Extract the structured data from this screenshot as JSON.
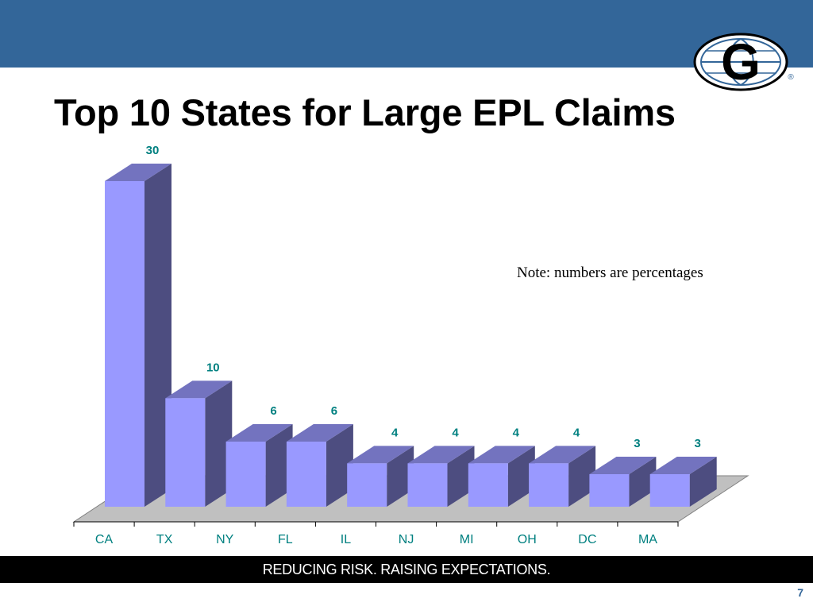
{
  "slide": {
    "title": "Top 10 States for Large EPL Claims",
    "note": "Note: numbers are percentages",
    "footer": "REDUCING RISK.  RAISING EXPECTATIONS.",
    "page_number": "7",
    "logo_letter": "G",
    "logo_mark": "®"
  },
  "colors": {
    "band": "#336699",
    "bar_front": "#9999FF",
    "bar_side": "#4D4D80",
    "bar_top": "#7373BF",
    "floor": "#C0C0C0",
    "data_label": "#008080",
    "tick_label": "#008080",
    "footer_bg": "#000000",
    "footer_text": "#FFFFFF",
    "page_number": "#336699"
  },
  "chart_data": {
    "type": "bar",
    "title": "",
    "categories": [
      "CA",
      "TX",
      "NY",
      "FL",
      "IL",
      "NJ",
      "MI",
      "OH",
      "DC",
      "MA"
    ],
    "values": [
      30,
      10,
      6,
      6,
      4,
      4,
      4,
      4,
      3,
      3
    ],
    "xlabel": "",
    "ylabel": "",
    "ylim": [
      0,
      30
    ],
    "grid": false,
    "legend": "none",
    "style": "3d-column"
  }
}
